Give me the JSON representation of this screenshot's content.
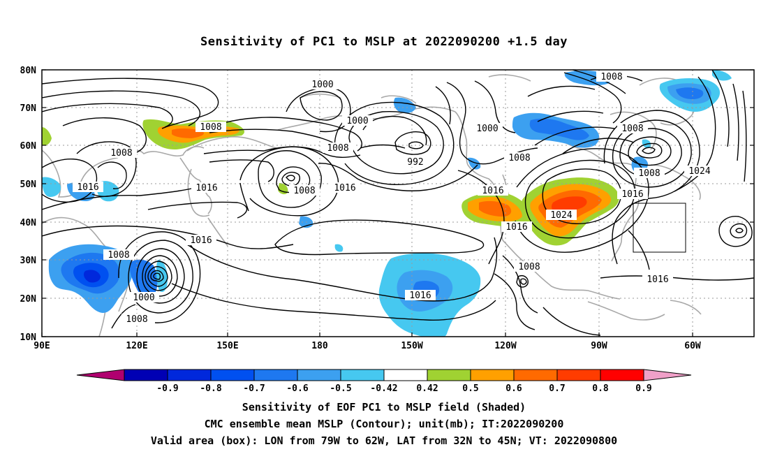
{
  "title": "Sensitivity of PC1 to MSLP at 2022090200 +1.5 day",
  "map": {
    "lat_labels": [
      "80N",
      "70N",
      "60N",
      "50N",
      "40N",
      "30N",
      "20N",
      "10N"
    ],
    "lon_labels": [
      "90E",
      "120E",
      "150E",
      "180",
      "150W",
      "120W",
      "90W",
      "60W"
    ],
    "box_description": "Valid area box: 79W-62W, 32N-45N",
    "contour_labels": [
      {
        "text": "1000",
        "name": "contour-label-1000-north-pacific"
      },
      {
        "text": "1000",
        "name": "contour-label-1000-alaska"
      },
      {
        "text": "1000",
        "name": "contour-label-1000-canada"
      },
      {
        "text": "1008",
        "name": "contour-label-1008-siberia"
      },
      {
        "text": "1008",
        "name": "contour-label-1008-asia"
      },
      {
        "text": "1008",
        "name": "contour-label-1008-bering"
      },
      {
        "text": "1008",
        "name": "contour-label-1008-gulf-alaska"
      },
      {
        "text": "1008",
        "name": "contour-label-1008-canada"
      },
      {
        "text": "1008",
        "name": "contour-label-1008-hudson"
      },
      {
        "text": "1008",
        "name": "contour-label-1008-greenland"
      },
      {
        "text": "1008",
        "name": "contour-label-1008-quebec"
      },
      {
        "text": "1008",
        "name": "contour-label-1008-china"
      },
      {
        "text": "1008",
        "name": "contour-label-1008-philippines"
      },
      {
        "text": "1008",
        "name": "contour-label-1008-mexico"
      },
      {
        "text": "992",
        "name": "contour-label-992"
      },
      {
        "text": "1016",
        "name": "contour-label-1016-asia"
      },
      {
        "text": "1016",
        "name": "contour-label-1016-japan"
      },
      {
        "text": "1016",
        "name": "contour-label-1016-pacific"
      },
      {
        "text": "1016",
        "name": "contour-label-1016-china-coast"
      },
      {
        "text": "1016",
        "name": "contour-label-1016-subtropical"
      },
      {
        "text": "1016",
        "name": "contour-label-1016-west-coast"
      },
      {
        "text": "1016",
        "name": "contour-label-1016-california"
      },
      {
        "text": "1016",
        "name": "contour-label-1016-east-coast"
      },
      {
        "text": "1016",
        "name": "contour-label-1016-atlantic"
      },
      {
        "text": "1024",
        "name": "contour-label-1024-plains"
      },
      {
        "text": "1024",
        "name": "contour-label-1024-atlantic"
      },
      {
        "text": "1000",
        "name": "contour-label-1000-typhoon"
      },
      {
        "text": "1008",
        "name": "contour-label-1008-typhoon-south"
      }
    ]
  },
  "colorbar": {
    "labels": [
      "-0.9",
      "-0.8",
      "-0.7",
      "-0.6",
      "-0.5",
      "-0.42",
      "0.42",
      "0.5",
      "0.6",
      "0.7",
      "0.8",
      "0.9"
    ],
    "colors": [
      "#b0006f",
      "#0000b4",
      "#0028dc",
      "#0050f0",
      "#1e78f0",
      "#3ca0f0",
      "#46c8f0",
      "#ffffff",
      "#a0d232",
      "#ffa000",
      "#ff6a00",
      "#ff3c00",
      "#ff0000",
      "#f0a0c8"
    ]
  },
  "captions": [
    "Sensitivity of EOF PC1 to MSLP field (Shaded)",
    "CMC ensemble mean MSLP (Contour); unit(mb); IT:2022090200",
    "Valid area (box): LON from 79W to 62W, LAT from 32N to 45N; VT: 2022090800"
  ]
}
